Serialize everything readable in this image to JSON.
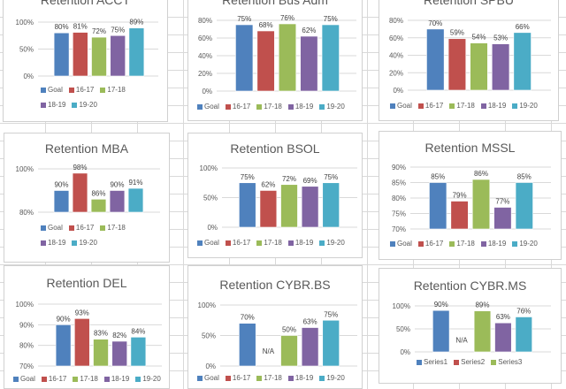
{
  "colors": [
    "#4f81bd",
    "#c0504d",
    "#9bbb59",
    "#8064a2",
    "#4bacc6"
  ],
  "chart_data": [
    {
      "type": "bar",
      "title": "Retention ACCT",
      "categories": [
        "Goal",
        "16-17",
        "17-18",
        "18-19",
        "19-20"
      ],
      "values": [
        80,
        81,
        72,
        75,
        89
      ],
      "value_labels": [
        "80%",
        "81%",
        "72%",
        "75%",
        "89%"
      ],
      "ylim": [
        0,
        100
      ],
      "yticks": [
        0,
        50,
        100
      ],
      "ytick_labels": [
        "0%",
        "50%",
        "100%"
      ],
      "grid": true,
      "legend": "bottom",
      "legend_entries": [
        "Goal",
        "16-17",
        "17-18",
        "18-19",
        "19-20"
      ]
    },
    {
      "type": "bar",
      "title": "Retention Bus Adm",
      "categories": [
        "Goal",
        "16-17",
        "17-18",
        "18-19",
        "19-20"
      ],
      "values": [
        75,
        68,
        76,
        62,
        75
      ],
      "value_labels": [
        "75%",
        "68%",
        "76%",
        "62%",
        "75%"
      ],
      "ylim": [
        0,
        80
      ],
      "yticks": [
        0,
        20,
        40,
        60,
        80
      ],
      "ytick_labels": [
        "0%",
        "20%",
        "40%",
        "60%",
        "80%"
      ],
      "grid": true,
      "legend": "bottom",
      "legend_entries": [
        "Goal",
        "16-17",
        "17-18",
        "18-19",
        "19-20"
      ]
    },
    {
      "type": "bar",
      "title": "Retention SPBU",
      "categories": [
        "Goal",
        "16-17",
        "17-18",
        "18-19",
        "19-20"
      ],
      "values": [
        70,
        59,
        54,
        53,
        66
      ],
      "value_labels": [
        "70%",
        "59%",
        "54%",
        "53%",
        "66%"
      ],
      "ylim": [
        0,
        80
      ],
      "yticks": [
        0,
        20,
        40,
        60,
        80
      ],
      "ytick_labels": [
        "0%",
        "20%",
        "40%",
        "60%",
        "80%"
      ],
      "grid": true,
      "legend": "bottom",
      "legend_entries": [
        "Goal",
        "16-17",
        "17-18",
        "18-19",
        "19-20"
      ]
    },
    {
      "type": "bar",
      "title": "Retention MBA",
      "categories": [
        "Goal",
        "16-17",
        "17-18",
        "18-19",
        "19-20"
      ],
      "values": [
        90,
        98,
        86,
        90,
        91
      ],
      "value_labels": [
        "90%",
        "98%",
        "86%",
        "90%",
        "91%"
      ],
      "ylim": [
        80,
        100
      ],
      "yticks": [
        80,
        100
      ],
      "ytick_labels": [
        "80%",
        "100%"
      ],
      "grid": true,
      "legend": "bottom",
      "legend_entries": [
        "Goal",
        "16-17",
        "17-18",
        "18-19",
        "19-20"
      ]
    },
    {
      "type": "bar",
      "title": "Retention BSOL",
      "categories": [
        "Goal",
        "16-17",
        "17-18",
        "18-19",
        "19-20"
      ],
      "values": [
        75,
        62,
        72,
        69,
        75
      ],
      "value_labels": [
        "75%",
        "62%",
        "72%",
        "69%",
        "75%"
      ],
      "ylim": [
        0,
        100
      ],
      "yticks": [
        0,
        50,
        100
      ],
      "ytick_labels": [
        "0%",
        "50%",
        "100%"
      ],
      "grid": true,
      "legend": "bottom",
      "legend_entries": [
        "Goal",
        "16-17",
        "17-18",
        "18-19",
        "19-20"
      ]
    },
    {
      "type": "bar",
      "title": "Retention MSSL",
      "categories": [
        "Goal",
        "16-17",
        "17-18",
        "18-19",
        "19-20"
      ],
      "values": [
        85,
        79,
        86,
        77,
        85
      ],
      "value_labels": [
        "85%",
        "79%",
        "86%",
        "77%",
        "85%"
      ],
      "ylim": [
        70,
        90
      ],
      "yticks": [
        70,
        75,
        80,
        85,
        90
      ],
      "ytick_labels": [
        "70%",
        "75%",
        "80%",
        "85%",
        "90%"
      ],
      "grid": true,
      "legend": "bottom",
      "legend_entries": [
        "Goal",
        "16-17",
        "17-18",
        "18-19",
        "19-20"
      ]
    },
    {
      "type": "bar",
      "title": "Retention DEL",
      "categories": [
        "Goal",
        "16-17",
        "17-18",
        "18-19",
        "19-20"
      ],
      "values": [
        90,
        93,
        83,
        82,
        84
      ],
      "value_labels": [
        "90%",
        "93%",
        "83%",
        "82%",
        "84%"
      ],
      "ylim": [
        70,
        100
      ],
      "yticks": [
        70,
        80,
        90,
        100
      ],
      "ytick_labels": [
        "70%",
        "80%",
        "90%",
        "100%"
      ],
      "grid": true,
      "legend": "bottom",
      "legend_entries": [
        "Goal",
        "16-17",
        "17-18",
        "18-19",
        "19-20"
      ]
    },
    {
      "type": "bar",
      "title": "Retention CYBR.BS",
      "categories": [
        "Goal",
        "16-17",
        "17-18",
        "18-19",
        "19-20"
      ],
      "values": [
        70,
        null,
        50,
        63,
        75
      ],
      "value_labels": [
        "70%",
        "N/A",
        "50%",
        "63%",
        "75%"
      ],
      "ylim": [
        0,
        100
      ],
      "yticks": [
        0,
        50,
        100
      ],
      "ytick_labels": [
        "0%",
        "50%",
        "100%"
      ],
      "grid": true,
      "legend": "bottom",
      "legend_entries": [
        "Goal",
        "16-17",
        "17-18",
        "18-19",
        "19-20"
      ]
    },
    {
      "type": "bar",
      "title": "Retention CYBR.MS",
      "categories": [
        "Series1",
        "Series2",
        "Series3",
        "",
        ""
      ],
      "values": [
        90,
        null,
        89,
        63,
        76
      ],
      "value_labels": [
        "90%",
        "N/A",
        "89%",
        "63%",
        "76%"
      ],
      "ylim": [
        0,
        100
      ],
      "yticks": [
        0,
        50,
        100
      ],
      "ytick_labels": [
        "0%",
        "50%",
        "100%"
      ],
      "grid": true,
      "legend": "bottom",
      "legend_entries": [
        "Series1",
        "Series2",
        "Series3"
      ]
    }
  ]
}
